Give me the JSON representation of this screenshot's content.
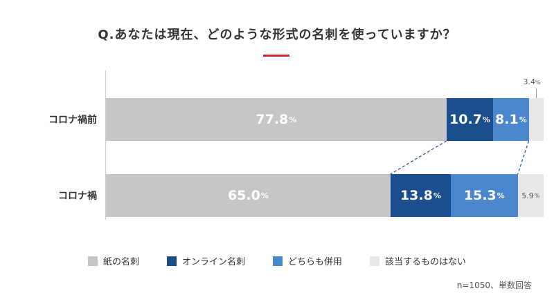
{
  "question": "Q.あなたは現在、どのような形式の名刺を使っていますか？",
  "note": "n=1050、単数回答",
  "colors": {
    "paper": "#c6c6c6",
    "online": "#1a4e8f",
    "both": "#4a87cc",
    "na": "#e8e8e8",
    "accent": "#c8262f"
  },
  "chart_data": {
    "type": "bar",
    "orientation": "horizontal-stacked-100",
    "categories": [
      "コロナ禍前",
      "コロナ禍"
    ],
    "series": [
      {
        "name": "紙の名刺",
        "values": [
          77.8,
          65.0
        ],
        "labels": [
          "77.8",
          "65.0"
        ],
        "color": "#c6c6c6"
      },
      {
        "name": "オンライン名刺",
        "values": [
          10.7,
          13.8
        ],
        "labels": [
          "10.7",
          "13.8"
        ],
        "color": "#1a4e8f"
      },
      {
        "name": "どちらも併用",
        "values": [
          8.1,
          15.3
        ],
        "labels": [
          "8.1",
          "15.3"
        ],
        "color": "#4a87cc"
      },
      {
        "name": "該当するものはない",
        "values": [
          3.4,
          5.9
        ],
        "labels": [
          "3.4",
          "5.9"
        ],
        "color": "#e8e8e8"
      }
    ],
    "unit": "%",
    "legend_position": "bottom"
  }
}
